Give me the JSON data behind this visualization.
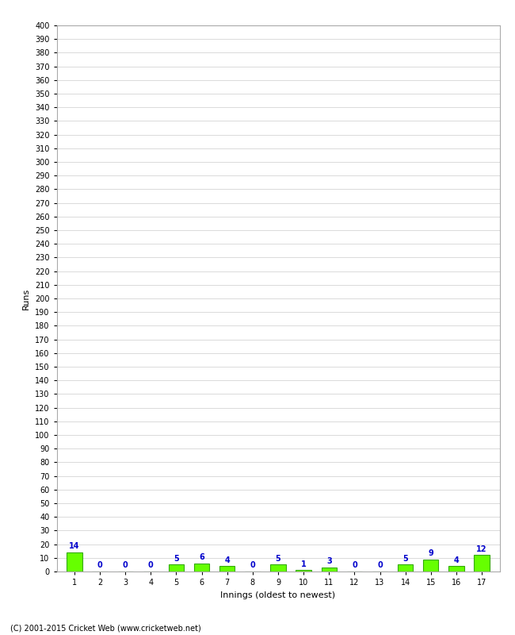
{
  "xlabel": "Innings (oldest to newest)",
  "ylabel": "Runs",
  "categories": [
    1,
    2,
    3,
    4,
    5,
    6,
    7,
    8,
    9,
    10,
    11,
    12,
    13,
    14,
    15,
    16,
    17
  ],
  "values": [
    14,
    0,
    0,
    0,
    5,
    6,
    4,
    0,
    5,
    1,
    3,
    0,
    0,
    5,
    9,
    4,
    12
  ],
  "bar_color": "#66ff00",
  "bar_edge_color": "#33aa00",
  "label_color": "#0000cc",
  "ylim": [
    0,
    400
  ],
  "background_color": "#ffffff",
  "grid_color": "#cccccc",
  "footer": "(C) 2001-2015 Cricket Web (www.cricketweb.net)"
}
